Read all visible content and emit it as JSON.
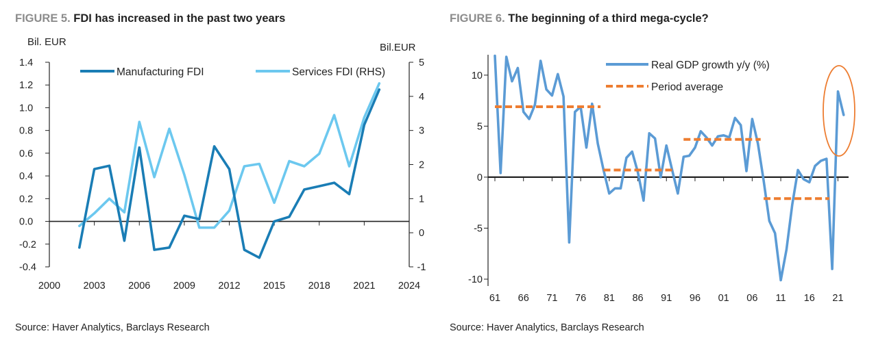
{
  "figure5": {
    "title_num": "FIGURE 5.",
    "title_text": "FDI has increased in the past two years",
    "source": "Source: Haver Analytics, Barclays Research"
  },
  "figure6": {
    "title_num": "FIGURE 6.",
    "title_text": "The beginning of a third mega-cycle?",
    "source": "Source: Haver Analytics, Barclays Research"
  },
  "colors": {
    "dark_blue": "#1a7db5",
    "light_blue": "#6cc8ef",
    "gdp_blue": "#5b9bd5",
    "orange": "#ed7d31"
  },
  "chart_data": [
    {
      "type": "line",
      "title": "FDI has increased in the past two years",
      "ylabel_left": "Bil. EUR",
      "ylabel_right": "Bil.EUR",
      "xlim": [
        2000,
        2024
      ],
      "ylim_left": [
        -0.4,
        1.4
      ],
      "ylim_right": [
        -1,
        5
      ],
      "x_ticks": [
        2000,
        2003,
        2006,
        2009,
        2012,
        2015,
        2018,
        2021,
        2024
      ],
      "x_tick_labels": [
        "2000",
        "2003",
        "2006",
        "2009",
        "2012",
        "2015",
        "2018",
        "2021",
        "2024"
      ],
      "y_ticks_left": [
        -0.4,
        -0.2,
        0.0,
        0.2,
        0.4,
        0.6,
        0.8,
        1.0,
        1.2,
        1.4
      ],
      "y_tick_labels_left": [
        "-0.4",
        "-0.2",
        "0.0",
        "0.2",
        "0.4",
        "0.6",
        "0.8",
        "1.0",
        "1.2",
        "1.4"
      ],
      "y_ticks_right": [
        -1,
        0,
        1,
        2,
        3,
        4,
        5
      ],
      "y_tick_labels_right": [
        "-1",
        "0",
        "1",
        "2",
        "3",
        "4",
        "5"
      ],
      "x": [
        2002,
        2003,
        2004,
        2005,
        2006,
        2007,
        2008,
        2009,
        2010,
        2011,
        2012,
        2013,
        2014,
        2015,
        2016,
        2017,
        2018,
        2019,
        2020,
        2021,
        2022
      ],
      "series": [
        {
          "name": "Manufacturing FDI",
          "axis": "left",
          "color": "#1a7db5",
          "values": [
            -0.23,
            0.46,
            0.49,
            -0.17,
            0.65,
            -0.25,
            -0.23,
            0.05,
            0.02,
            0.66,
            0.46,
            -0.25,
            -0.32,
            0.0,
            0.04,
            0.28,
            0.31,
            0.34,
            0.24,
            0.85,
            1.16
          ]
        },
        {
          "name": "Services FDI (RHS)",
          "axis": "right",
          "color": "#6cc8ef",
          "values": [
            0.2,
            0.57,
            1.0,
            0.6,
            3.25,
            1.63,
            3.05,
            1.7,
            0.15,
            0.15,
            0.65,
            1.95,
            2.02,
            0.88,
            2.1,
            1.95,
            2.32,
            3.45,
            1.95,
            3.38,
            4.38
          ]
        }
      ]
    },
    {
      "type": "line",
      "title": "The beginning of a third mega-cycle?",
      "xlim": [
        1961,
        2023
      ],
      "ylim": [
        -10,
        12
      ],
      "x_tick_labels": [
        "61",
        "66",
        "71",
        "76",
        "81",
        "86",
        "91",
        "96",
        "01",
        "06",
        "11",
        "16",
        "21"
      ],
      "x_ticks": [
        1961,
        1966,
        1971,
        1976,
        1981,
        1986,
        1991,
        1996,
        2001,
        2006,
        2011,
        2016,
        2021
      ],
      "y_ticks": [
        -10,
        -5,
        0,
        5,
        10
      ],
      "y_tick_labels": [
        "-10",
        "-5",
        "0",
        "5",
        "10"
      ],
      "series": [
        {
          "name": "Real GDP growth y/y (%)",
          "color": "#5b9bd5",
          "x": [
            1961,
            1962,
            1963,
            1964,
            1965,
            1966,
            1967,
            1968,
            1969,
            1970,
            1971,
            1972,
            1973,
            1974,
            1975,
            1976,
            1977,
            1978,
            1979,
            1980,
            1981,
            1982,
            1983,
            1984,
            1985,
            1986,
            1987,
            1988,
            1989,
            1990,
            1991,
            1992,
            1993,
            1994,
            1995,
            1996,
            1997,
            1998,
            1999,
            2000,
            2001,
            2002,
            2003,
            2004,
            2005,
            2006,
            2007,
            2008,
            2009,
            2010,
            2011,
            2012,
            2013,
            2014,
            2015,
            2016,
            2017,
            2018,
            2019,
            2020,
            2021,
            2022
          ],
          "values": [
            11.9,
            0.4,
            11.8,
            9.4,
            10.7,
            6.4,
            5.7,
            7.1,
            11.4,
            8.6,
            8.0,
            10.1,
            7.9,
            -6.4,
            6.4,
            6.9,
            2.9,
            7.2,
            3.3,
            0.7,
            -1.6,
            -1.1,
            -1.1,
            1.9,
            2.5,
            0.5,
            -2.3,
            4.3,
            3.8,
            0.0,
            3.1,
            0.7,
            -1.6,
            2.0,
            2.1,
            2.9,
            4.5,
            3.9,
            3.1,
            4.0,
            4.1,
            3.9,
            5.8,
            5.1,
            0.6,
            5.7,
            3.3,
            -0.3,
            -4.3,
            -5.5,
            -10.1,
            -7.1,
            -2.7,
            0.7,
            -0.2,
            -0.5,
            1.1,
            1.6,
            1.8,
            -9.0,
            8.4,
            6.1
          ]
        },
        {
          "name": "Period average",
          "color": "#ed7d31",
          "style": "dashed",
          "segments": [
            {
              "x_start": 1961,
              "x_end": 1979,
              "value": 6.9
            },
            {
              "x_start": 1980,
              "x_end": 1992,
              "value": 0.7
            },
            {
              "x_start": 1994,
              "x_end": 2007,
              "value": 3.7
            },
            {
              "x_start": 2008,
              "x_end": 2019,
              "value": -2.1
            }
          ]
        }
      ],
      "annotation": "circle around 2021-2022"
    }
  ]
}
